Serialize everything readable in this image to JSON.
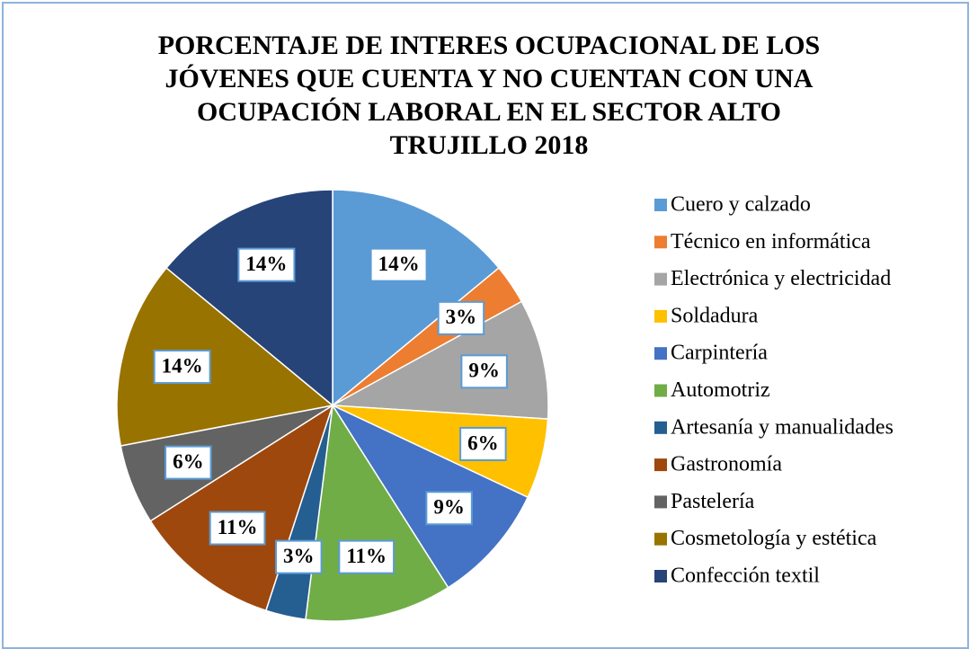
{
  "chart_data": {
    "type": "pie",
    "title": "PORCENTAJE DE INTERES OCUPACIONAL DE LOS JÓVENES QUE CUENTA Y NO CUENTAN CON UNA OCUPACIÓN LABORAL EN EL SECTOR ALTO TRUJILLO 2018",
    "categories": [
      "Cuero y calzado",
      "Técnico en informática",
      "Electrónica y electricidad",
      "Soldadura",
      "Carpintería",
      "Automotriz",
      "Artesanía y manualidades",
      "Gastronomía",
      "Pastelería",
      "Cosmetología y estética",
      "Confección textil"
    ],
    "values": [
      14,
      3,
      9,
      6,
      9,
      11,
      3,
      11,
      6,
      14,
      14
    ],
    "value_labels": [
      "14%",
      "3%",
      "9%",
      "6%",
      "9%",
      "11%",
      "3%",
      "11%",
      "6%",
      "14%",
      "14%"
    ],
    "colors": [
      "#5b9bd5",
      "#ed7d31",
      "#a5a5a5",
      "#ffc000",
      "#4472c4",
      "#70ad47",
      "#255e91",
      "#9e480e",
      "#636363",
      "#997300",
      "#264478"
    ],
    "legend": "right"
  }
}
